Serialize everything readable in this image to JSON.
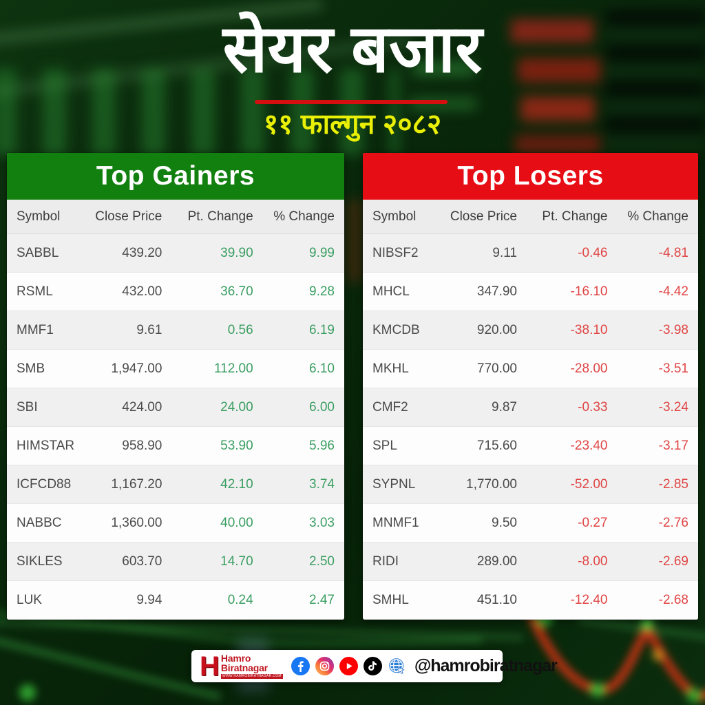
{
  "header": {
    "title": "सेयर बजार",
    "date": "११ फाल्गुन २०८२"
  },
  "chart_data": [
    {
      "type": "table",
      "title": "Top Gainers",
      "columns": [
        "Symbol",
        "Close Price",
        "Pt. Change",
        "% Change"
      ],
      "rows": [
        [
          "SABBL",
          "439.20",
          "39.90",
          "9.99"
        ],
        [
          "RSML",
          "432.00",
          "36.70",
          "9.28"
        ],
        [
          "MMF1",
          "9.61",
          "0.56",
          "6.19"
        ],
        [
          "SMB",
          "1,947.00",
          "112.00",
          "6.10"
        ],
        [
          "SBI",
          "424.00",
          "24.00",
          "6.00"
        ],
        [
          "HIMSTAR",
          "958.90",
          "53.90",
          "5.96"
        ],
        [
          "ICFCD88",
          "1,167.20",
          "42.10",
          "3.74"
        ],
        [
          "NABBC",
          "1,360.00",
          "40.00",
          "3.03"
        ],
        [
          "SIKLES",
          "603.70",
          "14.70",
          "2.50"
        ],
        [
          "LUK",
          "9.94",
          "0.24",
          "2.47"
        ]
      ]
    },
    {
      "type": "table",
      "title": "Top Losers",
      "columns": [
        "Symbol",
        "Close Price",
        "Pt. Change",
        "% Change"
      ],
      "rows": [
        [
          "NIBSF2",
          "9.11",
          "-0.46",
          "-4.81"
        ],
        [
          "MHCL",
          "347.90",
          "-16.10",
          "-4.42"
        ],
        [
          "KMCDB",
          "920.00",
          "-38.10",
          "-3.98"
        ],
        [
          "MKHL",
          "770.00",
          "-28.00",
          "-3.51"
        ],
        [
          "CMF2",
          "9.87",
          "-0.33",
          "-3.24"
        ],
        [
          "SPL",
          "715.60",
          "-23.40",
          "-3.17"
        ],
        [
          "SYPNL",
          "1,770.00",
          "-52.00",
          "-2.85"
        ],
        [
          "MNMF1",
          "9.50",
          "-0.27",
          "-2.76"
        ],
        [
          "RIDI",
          "289.00",
          "-8.00",
          "-2.69"
        ],
        [
          "SMHL",
          "451.10",
          "-12.40",
          "-2.68"
        ]
      ]
    }
  ],
  "footer": {
    "brand": {
      "monogram": "H",
      "line1": "Hamro",
      "line2": "Biratnagar",
      "url": "www.hamrobiratnagar.com"
    },
    "handle": "@hamrobiratnagar",
    "social_icons": [
      "facebook-icon",
      "instagram-icon",
      "youtube-icon",
      "tiktok-icon",
      "globe-icon"
    ]
  },
  "colors": {
    "background_green": "#0a2a0c",
    "banner_green": "#12800f",
    "banner_red": "#e60d15",
    "gain_text": "#3a9e62",
    "loss_text": "#e04545",
    "date_yellow": "#e9f005",
    "underline_red": "#d50f0f"
  }
}
